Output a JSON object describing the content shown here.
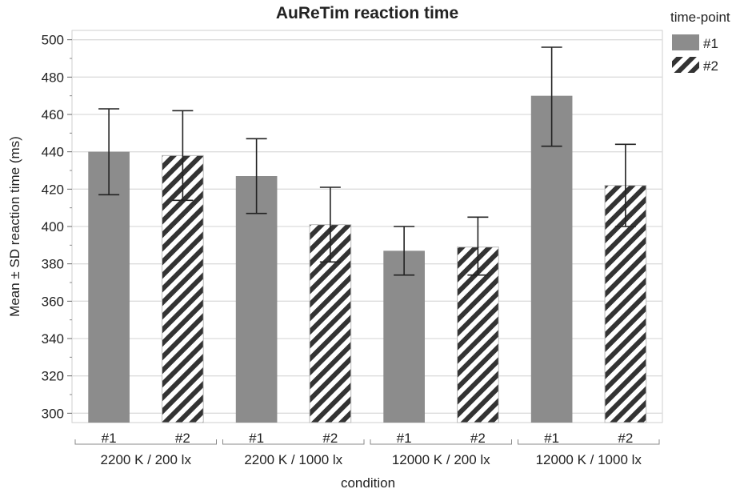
{
  "chart_data": {
    "type": "bar",
    "title": "AuReTim reaction time",
    "xlabel": "condition",
    "ylabel": "Mean ± SD reaction time (ms)",
    "ylim": [
      295,
      505
    ],
    "yticks": [
      300,
      320,
      340,
      360,
      380,
      400,
      420,
      440,
      460,
      480,
      500
    ],
    "grid": true,
    "legend": {
      "title": "time-point",
      "position": "top-right",
      "entries": [
        {
          "label": "#1",
          "style": "solid"
        },
        {
          "label": "#2",
          "style": "hatched"
        }
      ]
    },
    "groups": [
      "2200 K / 200 lx",
      "2200 K /  1000 lx",
      "12000 K / 200 lx",
      "12000 K / 1000 lx"
    ],
    "subcategories": [
      "#1",
      "#2"
    ],
    "series": [
      {
        "name": "#1",
        "style": "solid",
        "color": "#8c8c8c",
        "values": [
          440,
          427,
          387,
          470
        ],
        "sd_low": [
          417,
          407,
          374,
          443
        ],
        "sd_high": [
          463,
          447,
          400,
          496
        ]
      },
      {
        "name": "#2",
        "style": "hatched",
        "color": "#333333",
        "values": [
          438,
          401,
          389,
          422
        ],
        "sd_low": [
          414,
          381,
          374,
          400
        ],
        "sd_high": [
          462,
          421,
          405,
          444
        ]
      }
    ]
  }
}
